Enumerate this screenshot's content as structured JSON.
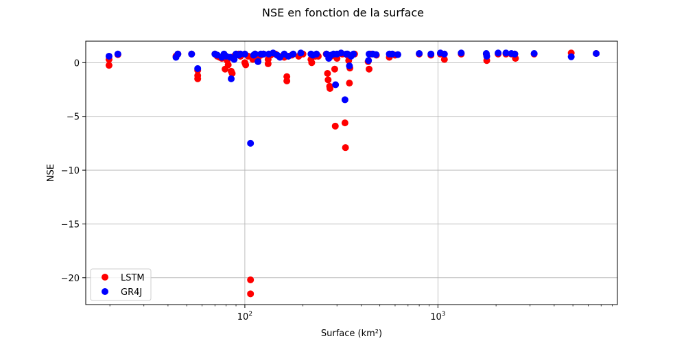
{
  "chart_data": {
    "type": "scatter",
    "title": "NSE en fonction de la surface",
    "xlabel": "Surface (km²)",
    "ylabel": "NSE",
    "xscale": "log",
    "xlim": [
      15,
      8500
    ],
    "ylim": [
      -22.5,
      2.0
    ],
    "grid": true,
    "legend_position": "lower left",
    "x_ticks": [
      {
        "value": 100,
        "base": "10",
        "exp": "2"
      },
      {
        "value": 1000,
        "base": "10",
        "exp": "3"
      }
    ],
    "y_ticks": [
      {
        "value": 0,
        "label": "0"
      },
      {
        "value": -5,
        "label": "−5"
      },
      {
        "value": -10,
        "label": "−10"
      },
      {
        "value": -15,
        "label": "−15"
      },
      {
        "value": -20,
        "label": "−20"
      }
    ],
    "series": [
      {
        "name": "LSTM",
        "color": "#ff0000",
        "points": [
          [
            19.8,
            0.3
          ],
          [
            19.8,
            -0.25
          ],
          [
            22,
            0.75
          ],
          [
            44,
            0.6
          ],
          [
            45,
            0.8
          ],
          [
            53,
            0.8
          ],
          [
            57,
            -0.7
          ],
          [
            57,
            -1.2
          ],
          [
            57,
            -1.5
          ],
          [
            70,
            0.8
          ],
          [
            72,
            0.6
          ],
          [
            74,
            0.5
          ],
          [
            76,
            0.4
          ],
          [
            78,
            0.7
          ],
          [
            79,
            -0.6
          ],
          [
            81,
            0.2
          ],
          [
            82,
            -0.2
          ],
          [
            85,
            -0.8
          ],
          [
            86,
            -1.0
          ],
          [
            88,
            0.6
          ],
          [
            90,
            0.7
          ],
          [
            93,
            0.8
          ],
          [
            95,
            0.6
          ],
          [
            100,
            0.0
          ],
          [
            101,
            -0.2
          ],
          [
            104,
            0.6
          ],
          [
            107,
            -20.2
          ],
          [
            107,
            -21.5
          ],
          [
            110,
            0.3
          ],
          [
            113,
            0.8
          ],
          [
            117,
            0.4
          ],
          [
            121,
            0.7
          ],
          [
            125,
            0.8
          ],
          [
            132,
            0.3
          ],
          [
            132,
            -0.1
          ],
          [
            136,
            0.7
          ],
          [
            144,
            0.8
          ],
          [
            150,
            0.6
          ],
          [
            160,
            0.5
          ],
          [
            165,
            -1.3
          ],
          [
            165,
            -1.7
          ],
          [
            175,
            0.7
          ],
          [
            190,
            0.6
          ],
          [
            200,
            0.8
          ],
          [
            220,
            0.3
          ],
          [
            222,
            0.0
          ],
          [
            232,
            0.6
          ],
          [
            240,
            0.6
          ],
          [
            264,
            0.8
          ],
          [
            268,
            -1.0
          ],
          [
            270,
            -1.6
          ],
          [
            275,
            -2.2
          ],
          [
            276,
            -2.4
          ],
          [
            280,
            0.6
          ],
          [
            290,
            0.7
          ],
          [
            292,
            -0.6
          ],
          [
            294,
            -5.9
          ],
          [
            300,
            0.4
          ],
          [
            320,
            0.8
          ],
          [
            330,
            -5.6
          ],
          [
            332,
            -7.9
          ],
          [
            340,
            0.7
          ],
          [
            345,
            0.2
          ],
          [
            348,
            -1.9
          ],
          [
            350,
            -0.5
          ],
          [
            370,
            0.8
          ],
          [
            435,
            0.1
          ],
          [
            440,
            -0.6
          ],
          [
            450,
            0.8
          ],
          [
            480,
            0.7
          ],
          [
            560,
            0.5
          ],
          [
            600,
            0.7
          ],
          [
            800,
            0.8
          ],
          [
            920,
            0.7
          ],
          [
            1030,
            0.8
          ],
          [
            1080,
            0.3
          ],
          [
            1320,
            0.8
          ],
          [
            1780,
            0.8
          ],
          [
            1790,
            0.2
          ],
          [
            2050,
            0.8
          ],
          [
            2250,
            0.8
          ],
          [
            2400,
            0.8
          ],
          [
            2500,
            0.8
          ],
          [
            2520,
            0.4
          ],
          [
            3150,
            0.8
          ],
          [
            4900,
            0.9
          ],
          [
            6600,
            0.85
          ]
        ]
      },
      {
        "name": "GR4J",
        "color": "#0000ff",
        "points": [
          [
            19.8,
            0.6
          ],
          [
            22,
            0.8
          ],
          [
            44,
            0.5
          ],
          [
            45,
            0.8
          ],
          [
            53,
            0.8
          ],
          [
            57,
            -0.55
          ],
          [
            70,
            0.8
          ],
          [
            72,
            0.7
          ],
          [
            76,
            0.5
          ],
          [
            78,
            0.8
          ],
          [
            80,
            0.6
          ],
          [
            84,
            0.5
          ],
          [
            85,
            -1.5
          ],
          [
            88,
            0.3
          ],
          [
            90,
            0.8
          ],
          [
            93,
            0.7
          ],
          [
            95,
            0.8
          ],
          [
            100,
            0.8
          ],
          [
            107,
            -7.5
          ],
          [
            111,
            0.7
          ],
          [
            113,
            0.8
          ],
          [
            117,
            0.1
          ],
          [
            121,
            0.8
          ],
          [
            125,
            0.8
          ],
          [
            133,
            0.8
          ],
          [
            140,
            0.9
          ],
          [
            147,
            0.7
          ],
          [
            152,
            0.5
          ],
          [
            160,
            0.8
          ],
          [
            168,
            0.6
          ],
          [
            178,
            0.8
          ],
          [
            195,
            0.9
          ],
          [
            220,
            0.8
          ],
          [
            225,
            0.7
          ],
          [
            235,
            0.8
          ],
          [
            265,
            0.8
          ],
          [
            272,
            0.4
          ],
          [
            280,
            0.7
          ],
          [
            288,
            0.8
          ],
          [
            295,
            -2.05
          ],
          [
            300,
            0.8
          ],
          [
            315,
            0.9
          ],
          [
            330,
            -3.45
          ],
          [
            335,
            0.8
          ],
          [
            340,
            0.8
          ],
          [
            348,
            -0.3
          ],
          [
            355,
            0.6
          ],
          [
            365,
            0.8
          ],
          [
            437,
            0.2
          ],
          [
            440,
            0.8
          ],
          [
            460,
            0.8
          ],
          [
            478,
            0.75
          ],
          [
            560,
            0.8
          ],
          [
            580,
            0.8
          ],
          [
            620,
            0.75
          ],
          [
            800,
            0.85
          ],
          [
            920,
            0.8
          ],
          [
            1030,
            0.9
          ],
          [
            1080,
            0.8
          ],
          [
            1320,
            0.9
          ],
          [
            1780,
            0.85
          ],
          [
            1790,
            0.6
          ],
          [
            2050,
            0.9
          ],
          [
            2250,
            0.9
          ],
          [
            2400,
            0.85
          ],
          [
            2500,
            0.8
          ],
          [
            3150,
            0.85
          ],
          [
            4900,
            0.55
          ],
          [
            6600,
            0.85
          ]
        ]
      }
    ]
  }
}
